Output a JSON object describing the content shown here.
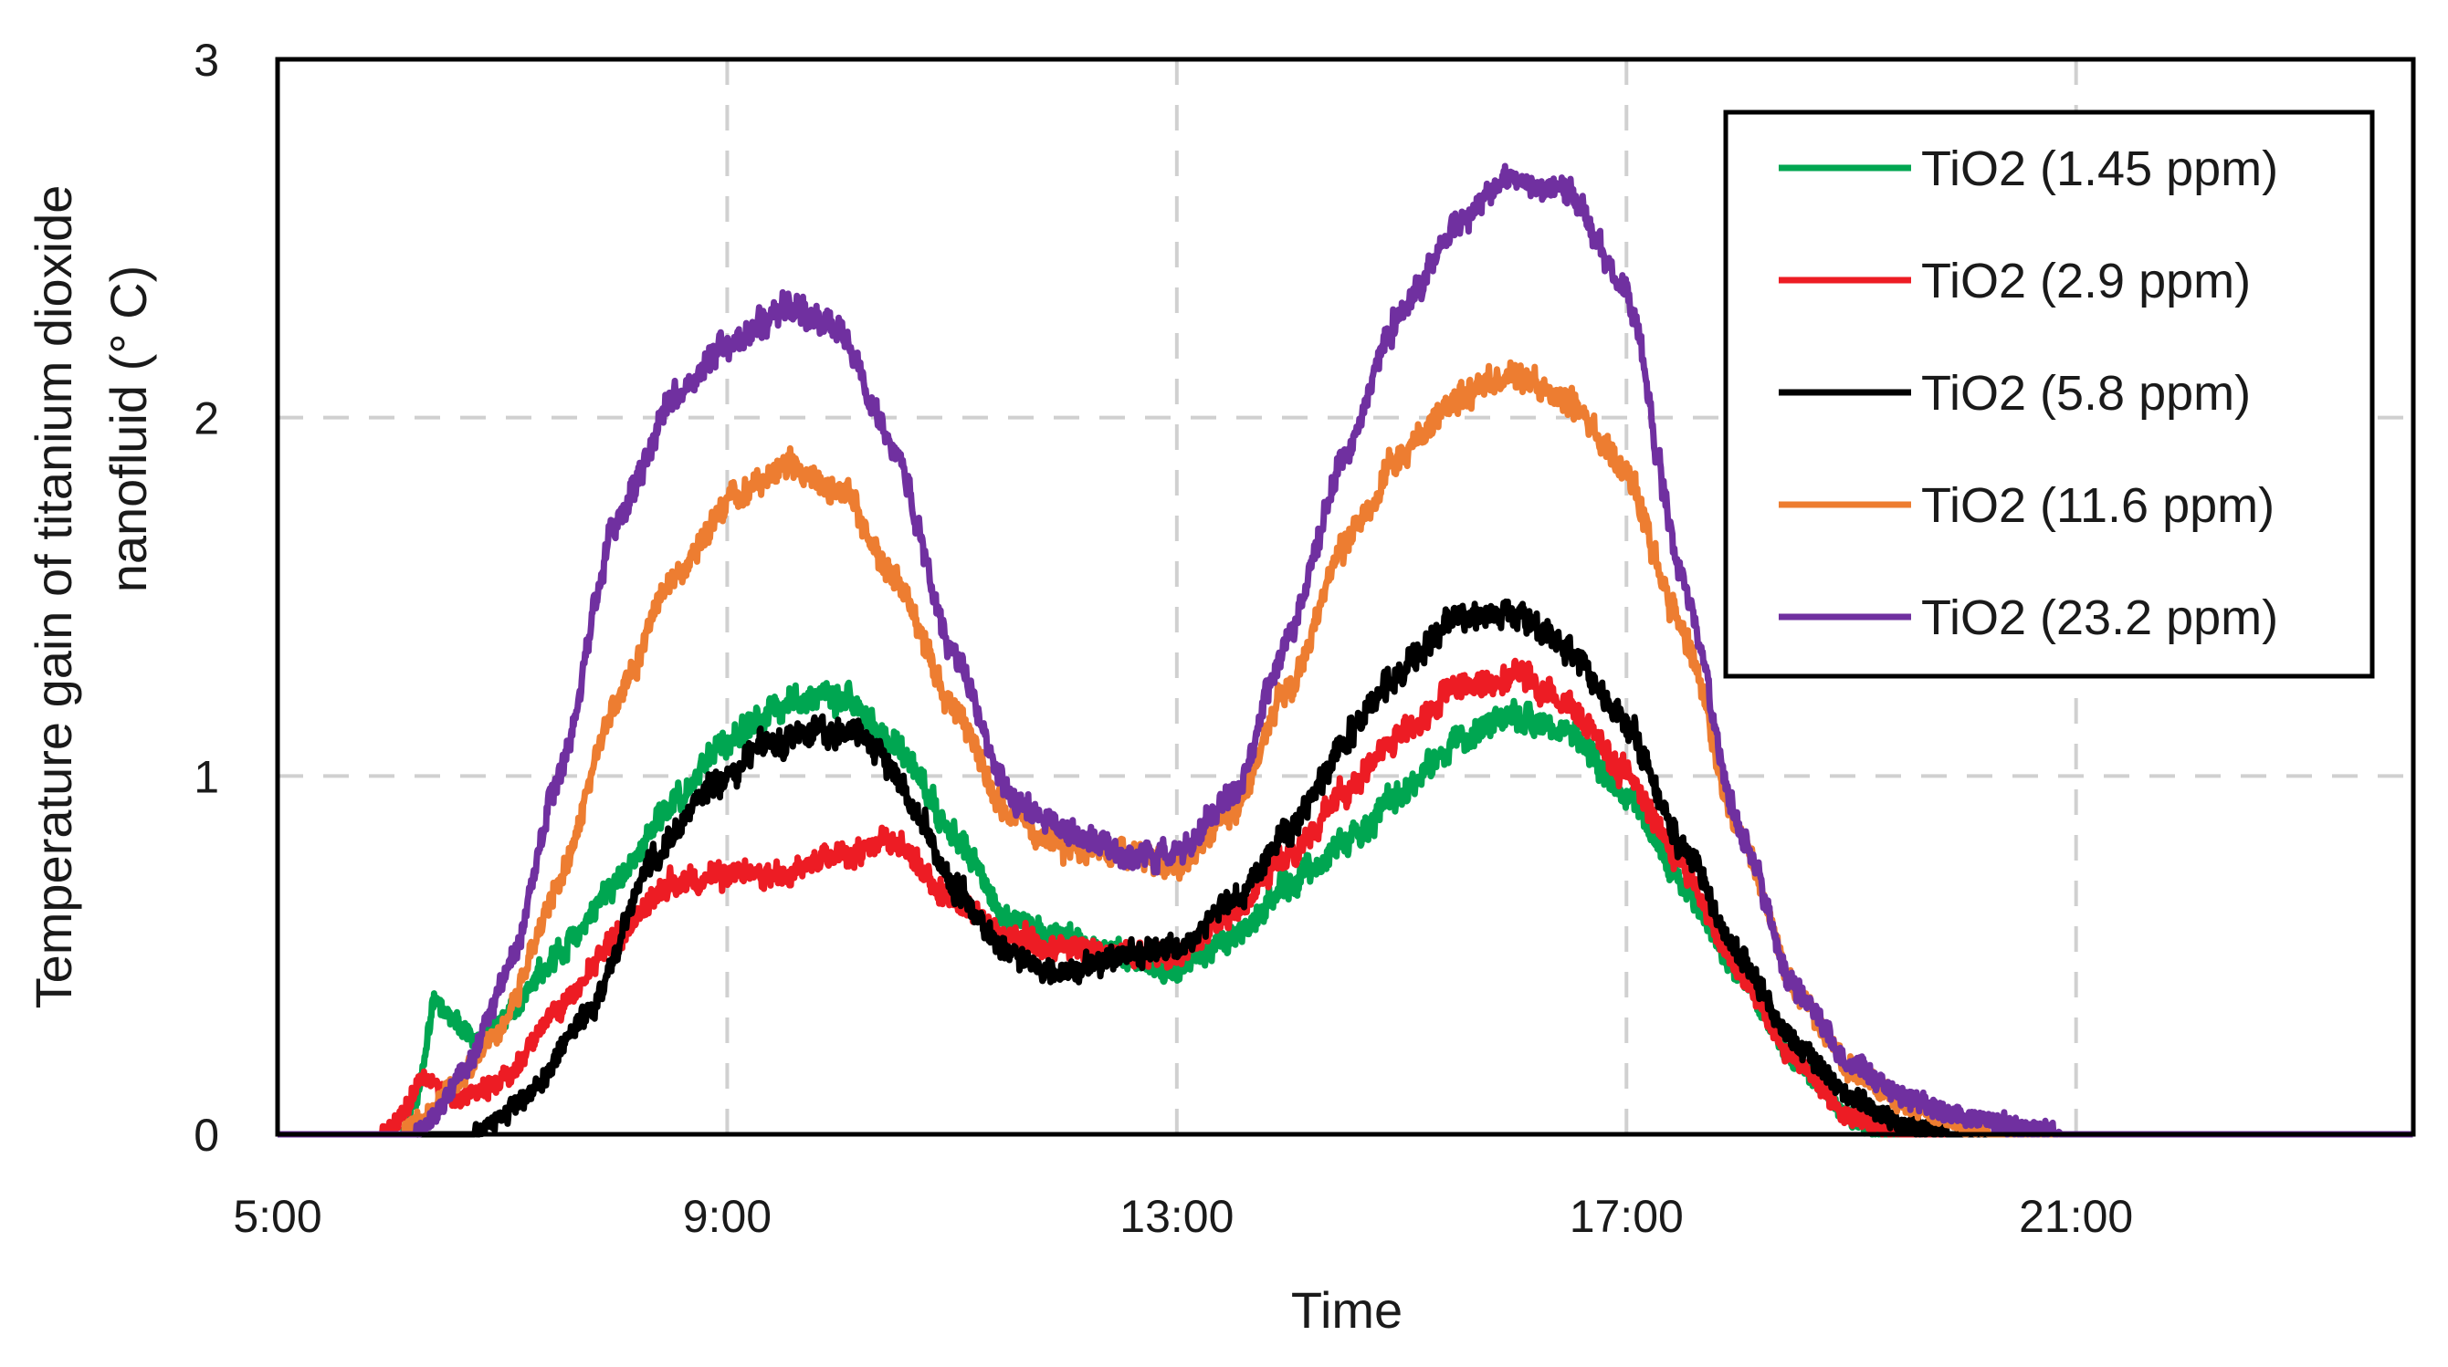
{
  "chart_data": {
    "type": "line",
    "title": "",
    "xlabel": "Time",
    "ylabel_lines": [
      "Temperature  gain of titanium dioxide",
      "nanofluid (° C)"
    ],
    "ylabel": "Temperature gain of titanium dioxide nanofluid (° C)",
    "x_range_hours": [
      5,
      24
    ],
    "ylim": [
      0,
      3
    ],
    "x_ticks": [
      {
        "hour": 5,
        "label": "5:00"
      },
      {
        "hour": 9,
        "label": "9:00"
      },
      {
        "hour": 13,
        "label": "13:00"
      },
      {
        "hour": 17,
        "label": "17:00"
      },
      {
        "hour": 21,
        "label": "21:00"
      }
    ],
    "y_ticks": [
      {
        "value": 0,
        "label": "0"
      },
      {
        "value": 1,
        "label": "1"
      },
      {
        "value": 2,
        "label": "2"
      },
      {
        "value": 3,
        "label": "3"
      }
    ],
    "grid": {
      "on": true,
      "style": "dashed",
      "color": "#d0d0d0"
    },
    "legend": {
      "position": "top-right",
      "boxed": true
    },
    "series": [
      {
        "name": "TiO2 (1.45 ppm)",
        "color": "#00A651",
        "noise": 0.05,
        "seed": 11,
        "points": [
          [
            5,
            0
          ],
          [
            6.1,
            0
          ],
          [
            6.25,
            0.12
          ],
          [
            6.4,
            0.38
          ],
          [
            6.55,
            0.33
          ],
          [
            6.75,
            0.25
          ],
          [
            7.0,
            0.32
          ],
          [
            7.5,
            0.5
          ],
          [
            8.0,
            0.7
          ],
          [
            8.5,
            0.92
          ],
          [
            9.0,
            1.1
          ],
          [
            9.5,
            1.2
          ],
          [
            10.0,
            1.22
          ],
          [
            10.5,
            1.1
          ],
          [
            11.0,
            0.85
          ],
          [
            11.5,
            0.6
          ],
          [
            12.0,
            0.55
          ],
          [
            12.5,
            0.5
          ],
          [
            13.0,
            0.45
          ],
          [
            13.5,
            0.55
          ],
          [
            14.0,
            0.7
          ],
          [
            14.5,
            0.82
          ],
          [
            15.0,
            0.95
          ],
          [
            15.5,
            1.1
          ],
          [
            16.0,
            1.17
          ],
          [
            16.5,
            1.12
          ],
          [
            17.0,
            0.95
          ],
          [
            17.5,
            0.7
          ],
          [
            18.0,
            0.45
          ],
          [
            18.5,
            0.2
          ],
          [
            19.0,
            0.05
          ],
          [
            19.3,
            0
          ],
          [
            24,
            0
          ]
        ]
      },
      {
        "name": "TiO2 (2.9 ppm)",
        "color": "#ED1C24",
        "noise": 0.05,
        "seed": 23,
        "points": [
          [
            5,
            0
          ],
          [
            5.9,
            0
          ],
          [
            6.05,
            0.03
          ],
          [
            6.3,
            0.15
          ],
          [
            6.6,
            0.1
          ],
          [
            7.0,
            0.15
          ],
          [
            7.5,
            0.35
          ],
          [
            8.0,
            0.55
          ],
          [
            8.5,
            0.7
          ],
          [
            9.0,
            0.72
          ],
          [
            9.5,
            0.73
          ],
          [
            10.0,
            0.78
          ],
          [
            10.5,
            0.82
          ],
          [
            11.0,
            0.65
          ],
          [
            11.5,
            0.55
          ],
          [
            12.0,
            0.52
          ],
          [
            12.5,
            0.5
          ],
          [
            13.0,
            0.5
          ],
          [
            13.5,
            0.62
          ],
          [
            14.0,
            0.78
          ],
          [
            14.5,
            0.95
          ],
          [
            15.0,
            1.12
          ],
          [
            15.5,
            1.25
          ],
          [
            16.0,
            1.28
          ],
          [
            16.5,
            1.2
          ],
          [
            17.0,
            1.0
          ],
          [
            17.5,
            0.75
          ],
          [
            18.0,
            0.45
          ],
          [
            18.5,
            0.2
          ],
          [
            19.0,
            0.05
          ],
          [
            19.5,
            0
          ],
          [
            24,
            0
          ]
        ]
      },
      {
        "name": "TiO2 (5.8 ppm)",
        "color": "#000000",
        "noise": 0.05,
        "seed": 37,
        "points": [
          [
            5,
            0
          ],
          [
            6.7,
            0
          ],
          [
            6.9,
            0.03
          ],
          [
            7.2,
            0.1
          ],
          [
            7.8,
            0.35
          ],
          [
            8.3,
            0.75
          ],
          [
            8.8,
            0.95
          ],
          [
            9.3,
            1.08
          ],
          [
            9.8,
            1.12
          ],
          [
            10.2,
            1.12
          ],
          [
            10.6,
            0.95
          ],
          [
            11.0,
            0.7
          ],
          [
            11.5,
            0.5
          ],
          [
            12.0,
            0.45
          ],
          [
            12.5,
            0.5
          ],
          [
            13.0,
            0.52
          ],
          [
            13.5,
            0.65
          ],
          [
            14.0,
            0.85
          ],
          [
            14.5,
            1.1
          ],
          [
            15.0,
            1.3
          ],
          [
            15.5,
            1.45
          ],
          [
            16.0,
            1.45
          ],
          [
            16.5,
            1.35
          ],
          [
            17.0,
            1.15
          ],
          [
            17.5,
            0.8
          ],
          [
            18.0,
            0.5
          ],
          [
            18.5,
            0.25
          ],
          [
            19.0,
            0.1
          ],
          [
            19.5,
            0.02
          ],
          [
            20.0,
            0
          ],
          [
            24,
            0
          ]
        ]
      },
      {
        "name": "TiO2 (11.6 ppm)",
        "color": "#ED7D31",
        "noise": 0.05,
        "seed": 51,
        "points": [
          [
            5,
            0
          ],
          [
            6.1,
            0
          ],
          [
            6.25,
            0.03
          ],
          [
            6.6,
            0.15
          ],
          [
            7.0,
            0.3
          ],
          [
            7.5,
            0.7
          ],
          [
            8.0,
            1.2
          ],
          [
            8.5,
            1.55
          ],
          [
            9.0,
            1.75
          ],
          [
            9.5,
            1.87
          ],
          [
            10.0,
            1.8
          ],
          [
            10.5,
            1.55
          ],
          [
            11.0,
            1.2
          ],
          [
            11.5,
            0.9
          ],
          [
            12.0,
            0.8
          ],
          [
            12.5,
            0.8
          ],
          [
            13.0,
            0.75
          ],
          [
            13.5,
            0.9
          ],
          [
            14.0,
            1.25
          ],
          [
            14.5,
            1.65
          ],
          [
            15.0,
            1.9
          ],
          [
            15.5,
            2.05
          ],
          [
            16.0,
            2.12
          ],
          [
            16.5,
            2.05
          ],
          [
            17.0,
            1.85
          ],
          [
            17.5,
            1.4
          ],
          [
            18.0,
            0.85
          ],
          [
            18.5,
            0.4
          ],
          [
            19.0,
            0.18
          ],
          [
            19.5,
            0.08
          ],
          [
            20.0,
            0.02
          ],
          [
            20.3,
            0
          ],
          [
            24,
            0
          ]
        ]
      },
      {
        "name": "TiO2 (23.2 ppm)",
        "color": "#7030A0",
        "noise": 0.05,
        "seed": 73,
        "points": [
          [
            5,
            0
          ],
          [
            6.2,
            0
          ],
          [
            6.35,
            0.03
          ],
          [
            6.7,
            0.2
          ],
          [
            7.1,
            0.5
          ],
          [
            7.5,
            1.0
          ],
          [
            8.0,
            1.7
          ],
          [
            8.5,
            2.05
          ],
          [
            9.0,
            2.2
          ],
          [
            9.5,
            2.3
          ],
          [
            10.0,
            2.25
          ],
          [
            10.5,
            1.9
          ],
          [
            11.0,
            1.35
          ],
          [
            11.5,
            0.95
          ],
          [
            12.0,
            0.85
          ],
          [
            12.5,
            0.78
          ],
          [
            13.0,
            0.78
          ],
          [
            13.5,
            0.95
          ],
          [
            14.0,
            1.4
          ],
          [
            14.5,
            1.9
          ],
          [
            15.0,
            2.3
          ],
          [
            15.5,
            2.55
          ],
          [
            16.0,
            2.67
          ],
          [
            16.5,
            2.62
          ],
          [
            17.0,
            2.35
          ],
          [
            17.5,
            1.55
          ],
          [
            18.0,
            0.85
          ],
          [
            18.5,
            0.4
          ],
          [
            19.0,
            0.2
          ],
          [
            19.5,
            0.1
          ],
          [
            20.0,
            0.05
          ],
          [
            20.5,
            0.02
          ],
          [
            21.0,
            0
          ],
          [
            24,
            0
          ]
        ]
      }
    ]
  }
}
